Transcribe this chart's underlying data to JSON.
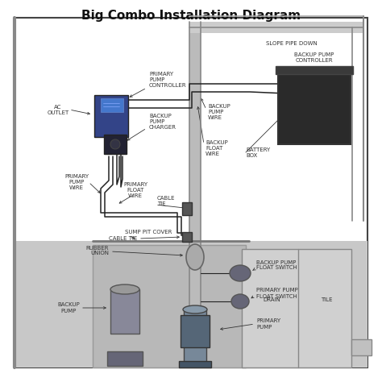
{
  "title": "Big Combo Installation Diagram",
  "title_fontsize": 11,
  "title_fontweight": "bold",
  "bg_color": "#ffffff",
  "border_color": "#444444",
  "ground_color": "#c8c8c8",
  "pipe_color": "#aaaaaa",
  "wire_color": "#222222",
  "label_fontsize": 5.0,
  "label_color": "#333333",
  "label_fontweight": "normal",
  "labels": {
    "ac_outlet": "AC\nOUTLET",
    "primary_pump_controller": "PRIMARY\nPUMP\nCONTROLLER",
    "backup_pump_charger": "BACKUP\nPUMP\nCHARGER",
    "primary_pump_wire": "PRIMARY\nPUMP\nWIRE",
    "primary_float_wire": "PRIMARY\nFLOAT\nWIRE",
    "cable_tie_upper": "CABLE\nTIE",
    "backup_pump_wire": "BACKUP\nPUMP\nWIRE",
    "backup_float_wire": "BACKUP\nFLOAT\nWIRE",
    "backup_pump_controller": "BACKUP PUMP\nCONTROLLER",
    "cable_tie_lower": "CABLE TIE",
    "battery_box": "BATTERY\nBOX",
    "sump_pit_cover": "SUMP PIT COVER",
    "rubber_union": "RUBBER\nUNION",
    "backup_pump": "BACKUP\nPUMP",
    "drain": "DRAIN",
    "tile": "TILE",
    "backup_pump_float_switch": "BACKUP PUMP\nFLOAT SWITCH",
    "primary_pump_float_switch": "PRIMARY PUMP\nFLOAT SWITCH",
    "primary_pump": "PRIMARY\nPUMP",
    "slope_pipe_down": "SLOPE PIPE DOWN"
  }
}
